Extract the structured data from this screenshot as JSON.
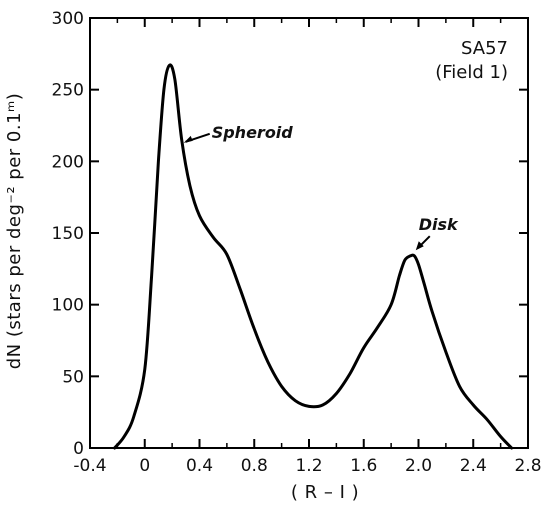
{
  "chart_data": {
    "type": "line",
    "title": "",
    "xlabel": "( R – I )",
    "ylabel": "dN (stars per deg⁻² per 0.1ᵐ)",
    "xlim": [
      -0.4,
      2.8
    ],
    "ylim": [
      0,
      300
    ],
    "x_ticks": [
      "-0.4",
      "0",
      "0.4",
      "0.8",
      "1.2",
      "1.6",
      "2.0",
      "2.4",
      "2.8"
    ],
    "y_ticks": [
      "0",
      "50",
      "100",
      "150",
      "200",
      "250",
      "300"
    ],
    "grid": false,
    "legend": "none",
    "field_label_1": "SA57",
    "field_label_2": "(Field 1)",
    "annotations": [
      {
        "text": "Spheroid",
        "x": 0.27,
        "y": 215
      },
      {
        "text": "Disk",
        "x": 1.98,
        "y": 138
      }
    ],
    "series": [
      {
        "x": [
          -0.22,
          -0.15,
          -0.08,
          0.0,
          0.05,
          0.1,
          0.14,
          0.18,
          0.22,
          0.27,
          0.33,
          0.4,
          0.5,
          0.6,
          0.7,
          0.8,
          0.9,
          1.0,
          1.1,
          1.2,
          1.3,
          1.4,
          1.5,
          1.6,
          1.7,
          1.8,
          1.86,
          1.9,
          1.94,
          1.97,
          2.0,
          2.04,
          2.1,
          2.2,
          2.3,
          2.4,
          2.5,
          2.6,
          2.68
        ],
        "y": [
          0,
          8,
          22,
          55,
          120,
          200,
          250,
          267,
          257,
          215,
          183,
          162,
          147,
          135,
          110,
          83,
          60,
          43,
          33,
          29,
          30,
          38,
          52,
          70,
          84,
          100,
          120,
          131,
          134,
          134,
          128,
          115,
          95,
          67,
          43,
          30,
          20,
          8,
          0
        ],
        "color": "#000000"
      }
    ]
  }
}
